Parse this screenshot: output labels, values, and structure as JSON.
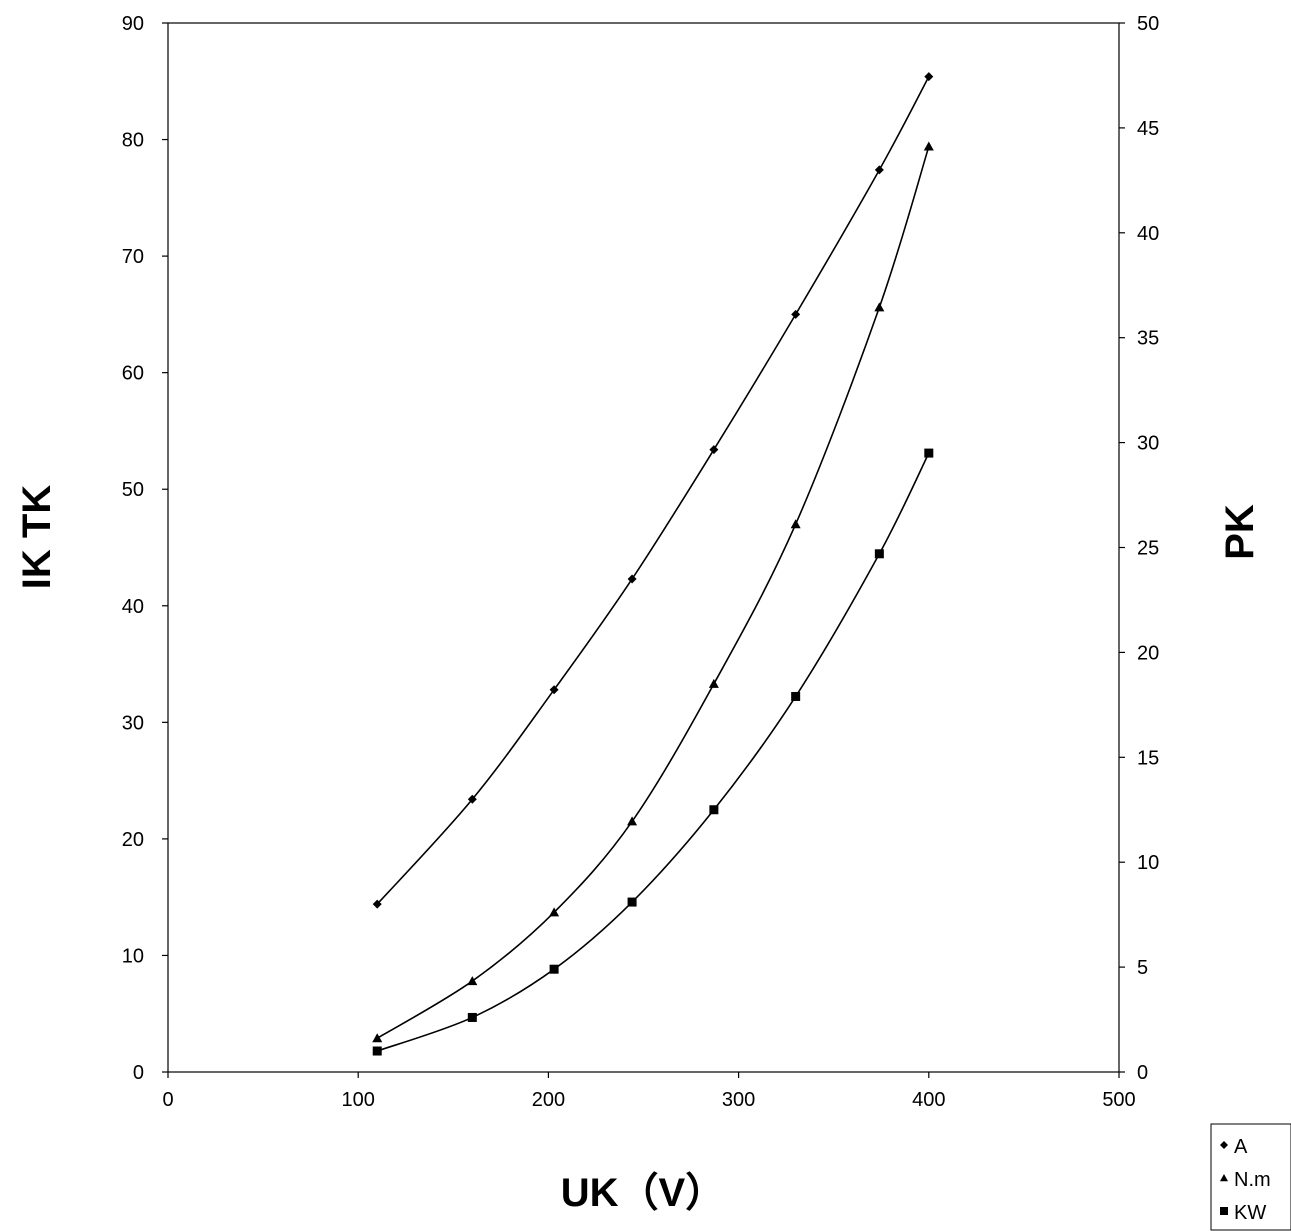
{
  "chart_data": {
    "type": "scatter",
    "title": "",
    "xlabel": "UK（V）",
    "ylabel_left": "IK TK",
    "ylabel_right": "PK",
    "xlim": [
      0,
      500
    ],
    "x_ticks": [
      0,
      100,
      200,
      300,
      400,
      500
    ],
    "ylim_left": [
      0,
      90
    ],
    "y_ticks_left": [
      0,
      10,
      20,
      30,
      40,
      50,
      60,
      70,
      80,
      90
    ],
    "ylim_right": [
      0,
      50
    ],
    "y_ticks_right": [
      0,
      5,
      10,
      15,
      20,
      25,
      30,
      35,
      40,
      45,
      50
    ],
    "grid": false,
    "legend_position": "bottom-right",
    "series": [
      {
        "name": "A",
        "axis": "left",
        "marker": "diamond",
        "x": [
          110,
          160,
          203,
          244,
          287,
          330,
          374,
          400
        ],
        "y": [
          14.4,
          23.4,
          32.8,
          42.3,
          53.4,
          65.0,
          77.4,
          85.4
        ]
      },
      {
        "name": "N.m",
        "axis": "left",
        "marker": "triangle",
        "x": [
          110,
          160,
          203,
          244,
          287,
          330,
          374,
          400
        ],
        "y": [
          2.9,
          7.8,
          13.7,
          21.5,
          33.3,
          47.0,
          65.6,
          79.4
        ]
      },
      {
        "name": "KW",
        "axis": "right",
        "marker": "square",
        "x": [
          110,
          160,
          203,
          244,
          287,
          330,
          374,
          400
        ],
        "y": [
          1.0,
          2.6,
          4.9,
          8.1,
          12.5,
          17.9,
          24.7,
          29.5
        ]
      }
    ]
  }
}
